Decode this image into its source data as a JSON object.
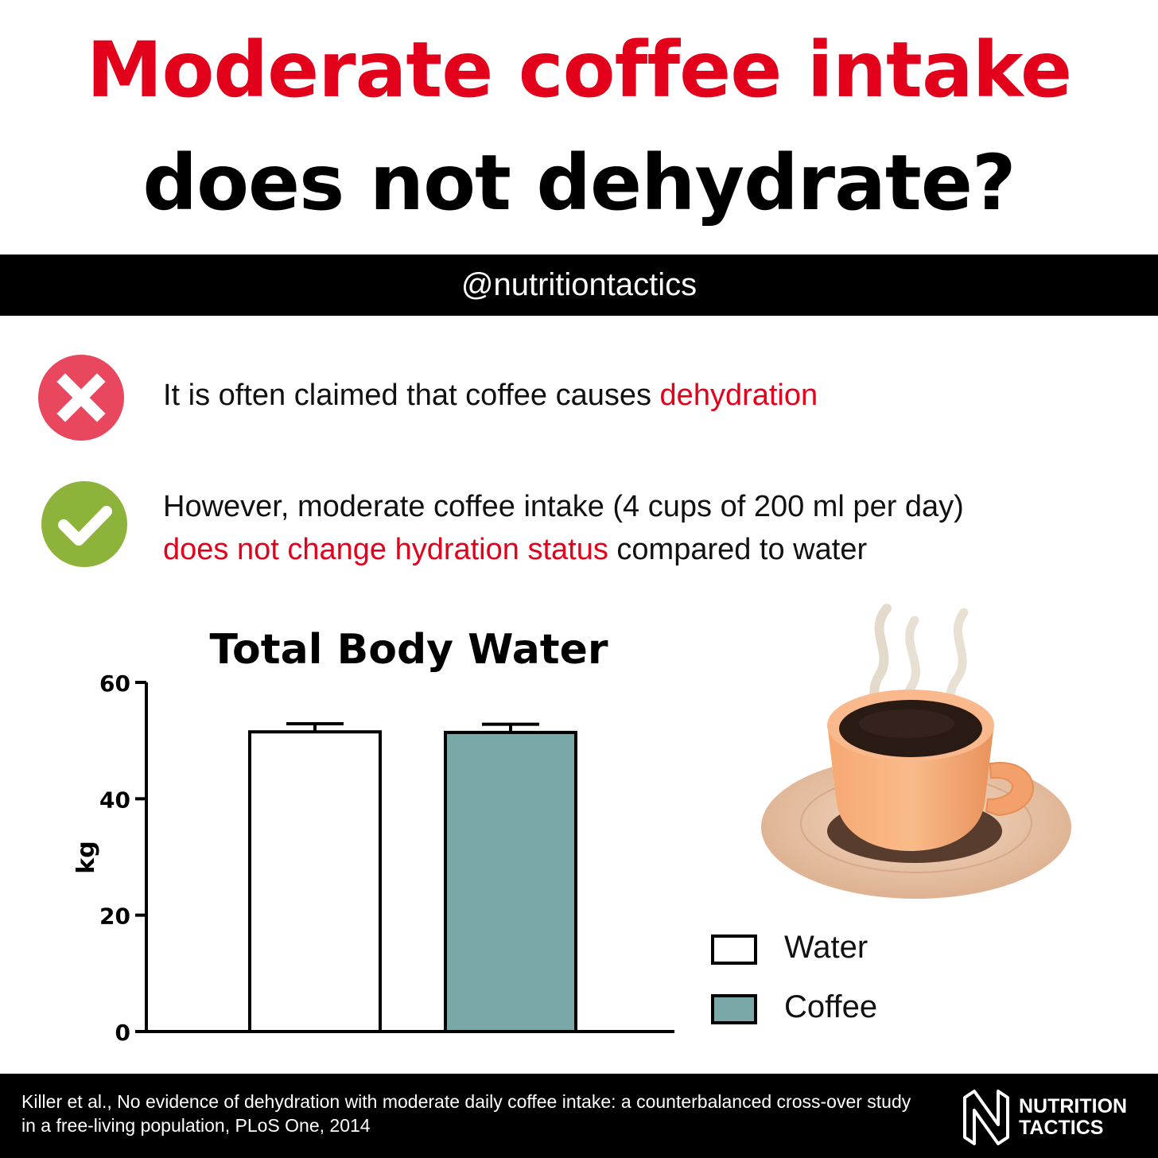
{
  "headline": {
    "line1": "Moderate coffee intake",
    "line2": "does not dehydrate?",
    "accent_color": "#e2001a"
  },
  "handle": "@nutritiontactics",
  "claims": [
    {
      "icon": "cross-icon",
      "color": "#e8475e",
      "text_before": "It is often claimed that coffee causes ",
      "highlight": "dehydration"
    },
    {
      "icon": "check-icon",
      "color": "#8db33a",
      "line1": "However, moderate coffee intake (4 cups of 200 ml per day)",
      "highlight": "does not change hydration status",
      "text_after": " compared to water"
    }
  ],
  "chart_data": {
    "type": "bar",
    "title": "Total Body Water",
    "ylabel": "kg",
    "xlabel": "",
    "ylim": [
      0,
      60
    ],
    "yticks": [
      0,
      20,
      40,
      60
    ],
    "grid": false,
    "legend_position": "bottom-right",
    "categories": [
      "Water",
      "Coffee"
    ],
    "values": [
      51.5,
      51.4
    ],
    "error": [
      1.4,
      1.4
    ],
    "colors": [
      "#ffffff",
      "#7aa8a8"
    ]
  },
  "legend": [
    {
      "label": "Water",
      "color": "#ffffff"
    },
    {
      "label": "Coffee",
      "color": "#7aa8a8"
    }
  ],
  "illustration": "coffee-cup-icon",
  "footer": {
    "citation": "Killer et al., No evidence of dehydration with moderate daily coffee intake: a counterbalanced cross-over study in a free-living population, PLoS One, 2014",
    "brand_line1": "NUTRITION",
    "brand_line2": "TACTICS"
  }
}
